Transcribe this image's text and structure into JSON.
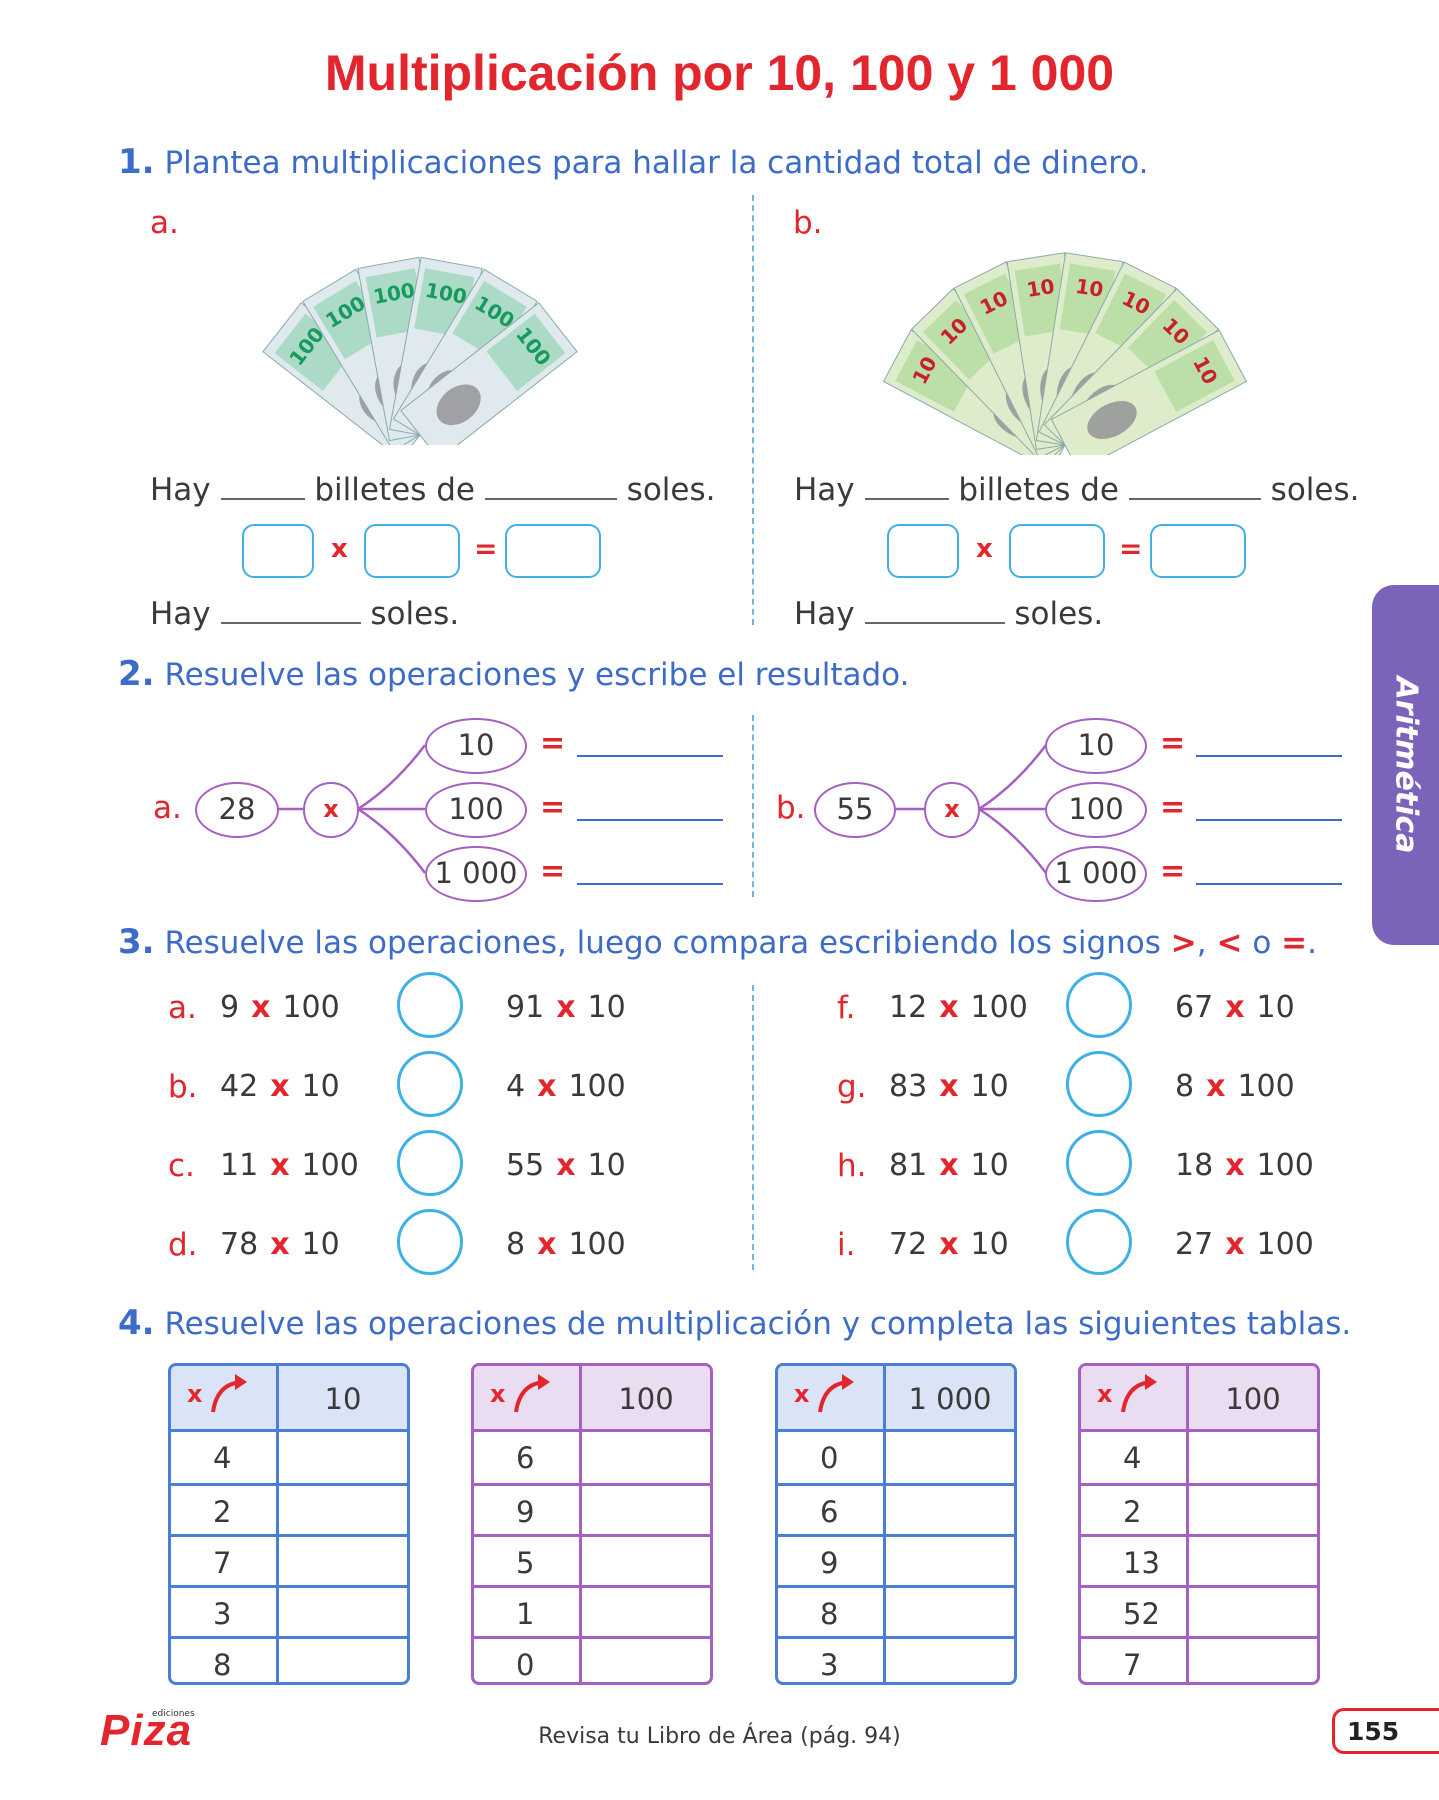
{
  "title": "Multiplicación por 10, 100 y 1 000",
  "q1": {
    "num": "1.",
    "text": "Plantea multiplicaciones para hallar la cantidad total de dinero.",
    "a": {
      "label": "a.",
      "bill": "100"
    },
    "b": {
      "label": "b.",
      "bill": "10"
    },
    "hay": "Hay",
    "billetes_de": "billetes de",
    "soles": "soles.",
    "x": "x",
    "eq": "="
  },
  "q2": {
    "num": "2.",
    "text": "Resuelve las operaciones y escribe el resultado.",
    "a": {
      "label": "a.",
      "base": "28"
    },
    "b": {
      "label": "b.",
      "base": "55"
    },
    "x": "x",
    "factors": [
      "10",
      "100",
      "1 000"
    ],
    "eq": "="
  },
  "q3": {
    "num": "3.",
    "text_pre": "Resuelve las operaciones, luego compara escribiendo los signos ",
    "sym1": ">",
    "comma": ",",
    "sym2": "<",
    "o": " o ",
    "sym3": "=",
    "dot": ".",
    "x": "x",
    "left": [
      {
        "label": "a.",
        "a1": "9",
        "a2": "100",
        "b1": "91",
        "b2": "10"
      },
      {
        "label": "b.",
        "a1": "42",
        "a2": "10",
        "b1": "4",
        "b2": "100"
      },
      {
        "label": "c.",
        "a1": "11",
        "a2": "100",
        "b1": "55",
        "b2": "10"
      },
      {
        "label": "d.",
        "a1": "78",
        "a2": "10",
        "b1": "8",
        "b2": "100"
      }
    ],
    "right": [
      {
        "label": "f.",
        "a1": "12",
        "a2": "100",
        "b1": "67",
        "b2": "10"
      },
      {
        "label": "g.",
        "a1": "83",
        "a2": "10",
        "b1": "8",
        "b2": "100"
      },
      {
        "label": "h.",
        "a1": "81",
        "a2": "10",
        "b1": "18",
        "b2": "100"
      },
      {
        "label": "i.",
        "a1": "72",
        "a2": "10",
        "b1": "27",
        "b2": "100"
      }
    ]
  },
  "q4": {
    "num": "4.",
    "text": "Resuelve las operaciones de multiplicación y completa las siguientes tablas.",
    "x": "x",
    "tables": [
      {
        "factor": "10",
        "rows": [
          "4",
          "2",
          "7",
          "3",
          "8"
        ],
        "color": "#4a7fd4",
        "head": "#dbe3f6"
      },
      {
        "factor": "100",
        "rows": [
          "6",
          "9",
          "5",
          "1",
          "0"
        ],
        "color": "#a460c2",
        "head": "#eadcf1"
      },
      {
        "factor": "1 000",
        "rows": [
          "0",
          "6",
          "9",
          "8",
          "3"
        ],
        "color": "#4a7fd4",
        "head": "#dbe3f6"
      },
      {
        "factor": "100",
        "rows": [
          "4",
          "2",
          "13",
          "52",
          "7"
        ],
        "color": "#a460c2",
        "head": "#eadcf1"
      }
    ]
  },
  "side_tab": "Aritmética",
  "footer": {
    "logo": "Piza",
    "logo_small": "ediciones",
    "note": "Revisa tu Libro de Área (pág. 94)",
    "page": "155"
  },
  "colors": {
    "red": "#e3262d",
    "blue": "#3d6cc8",
    "cyan": "#3fb0e6",
    "purple": "#a460c2",
    "tab": "#7a63b8"
  }
}
